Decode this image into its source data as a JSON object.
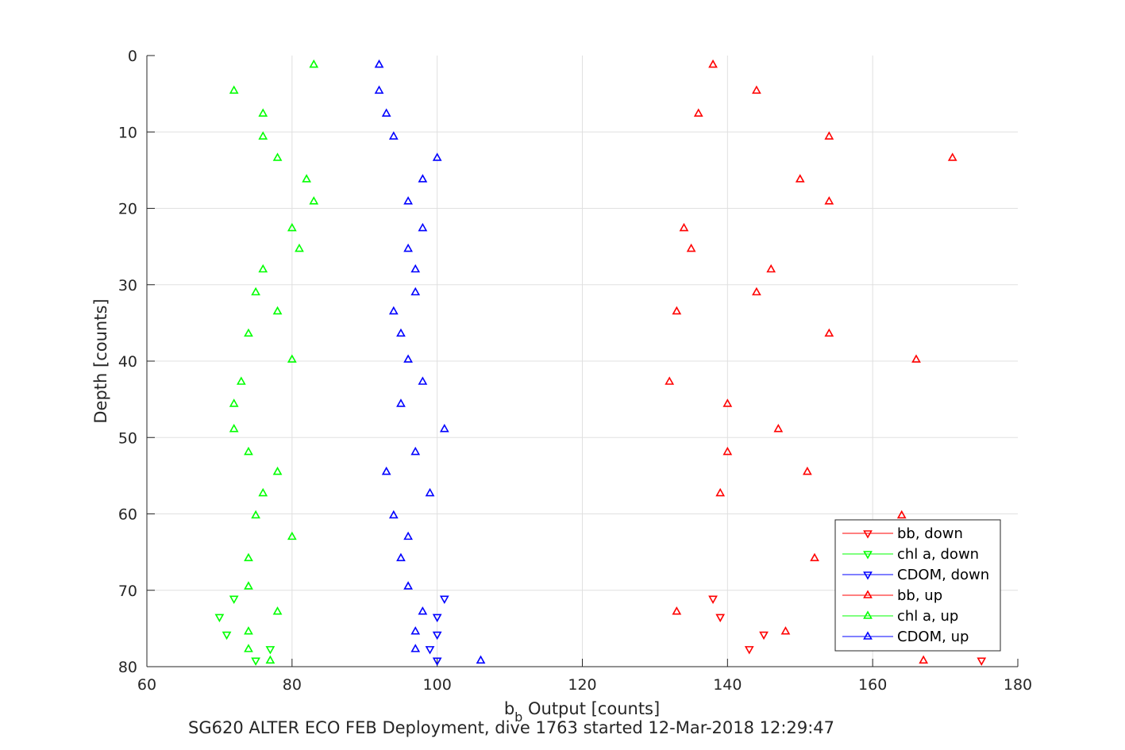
{
  "chart_data": {
    "type": "scatter",
    "xlabel": "b",
    "xlabel_sub": "b",
    "xlabel_suffix": " Output [counts]",
    "ylabel": "Depth [counts]",
    "caption": "SG620 ALTER ECO FEB Deployment, dive 1763 started 12-Mar-2018 12:29:47",
    "xlim": [
      60,
      180
    ],
    "ylim": [
      0,
      80
    ],
    "y_reversed": true,
    "xticks": [
      60,
      80,
      100,
      120,
      140,
      160,
      180
    ],
    "yticks": [
      0,
      10,
      20,
      30,
      40,
      50,
      60,
      70,
      80
    ],
    "grid": true,
    "legend_position": "bottom-right",
    "series": [
      {
        "name": "bb, down",
        "color": "#ff0000",
        "marker": "triangle-down",
        "points": [
          [
            138,
            71.1
          ],
          [
            139,
            73.5
          ],
          [
            145,
            75.8
          ],
          [
            143,
            77.7
          ],
          [
            175,
            79.2
          ]
        ]
      },
      {
        "name": "chl a, down",
        "color": "#00ff00",
        "marker": "triangle-down",
        "points": [
          [
            72,
            71.1
          ],
          [
            70,
            73.5
          ],
          [
            71,
            75.8
          ],
          [
            77,
            77.7
          ],
          [
            75,
            79.2
          ]
        ]
      },
      {
        "name": "CDOM, down",
        "color": "#0000ff",
        "marker": "triangle-down",
        "points": [
          [
            101,
            71.1
          ],
          [
            100,
            73.5
          ],
          [
            100,
            75.8
          ],
          [
            99,
            77.7
          ],
          [
            100,
            79.2
          ]
        ]
      },
      {
        "name": "bb, up",
        "color": "#ff0000",
        "marker": "triangle-up",
        "points": [
          [
            138,
            1.2
          ],
          [
            144,
            4.6
          ],
          [
            136,
            7.6
          ],
          [
            154,
            10.6
          ],
          [
            171,
            13.4
          ],
          [
            150,
            16.2
          ],
          [
            154,
            19.1
          ],
          [
            134,
            22.6
          ],
          [
            135,
            25.3
          ],
          [
            146,
            28.0
          ],
          [
            144,
            31.0
          ],
          [
            133,
            33.5
          ],
          [
            154,
            36.4
          ],
          [
            166,
            39.8
          ],
          [
            132,
            42.7
          ],
          [
            140,
            45.6
          ],
          [
            147,
            48.9
          ],
          [
            140,
            51.9
          ],
          [
            151,
            54.5
          ],
          [
            139,
            57.3
          ],
          [
            164,
            60.2
          ],
          [
            152,
            65.8
          ],
          [
            133,
            72.8
          ],
          [
            148,
            75.4
          ],
          [
            167,
            79.2
          ]
        ]
      },
      {
        "name": "chl a, up",
        "color": "#00ff00",
        "marker": "triangle-up",
        "points": [
          [
            83,
            1.2
          ],
          [
            72,
            4.6
          ],
          [
            76,
            7.6
          ],
          [
            76,
            10.6
          ],
          [
            78,
            13.4
          ],
          [
            82,
            16.2
          ],
          [
            83,
            19.1
          ],
          [
            80,
            22.6
          ],
          [
            81,
            25.3
          ],
          [
            76,
            28.0
          ],
          [
            75,
            31.0
          ],
          [
            78,
            33.5
          ],
          [
            74,
            36.4
          ],
          [
            80,
            39.8
          ],
          [
            73,
            42.7
          ],
          [
            72,
            45.6
          ],
          [
            72,
            48.9
          ],
          [
            74,
            51.9
          ],
          [
            78,
            54.5
          ],
          [
            76,
            57.3
          ],
          [
            75,
            60.2
          ],
          [
            80,
            63.0
          ],
          [
            74,
            65.8
          ],
          [
            74,
            69.5
          ],
          [
            78,
            72.8
          ],
          [
            74,
            75.4
          ],
          [
            74,
            77.7
          ],
          [
            77,
            79.2
          ]
        ]
      },
      {
        "name": "CDOM, up",
        "color": "#0000ff",
        "marker": "triangle-up",
        "points": [
          [
            92,
            1.2
          ],
          [
            92,
            4.6
          ],
          [
            93,
            7.6
          ],
          [
            94,
            10.6
          ],
          [
            100,
            13.4
          ],
          [
            98,
            16.2
          ],
          [
            96,
            19.1
          ],
          [
            98,
            22.6
          ],
          [
            96,
            25.3
          ],
          [
            97,
            28.0
          ],
          [
            97,
            31.0
          ],
          [
            94,
            33.5
          ],
          [
            95,
            36.4
          ],
          [
            96,
            39.8
          ],
          [
            98,
            42.7
          ],
          [
            95,
            45.6
          ],
          [
            101,
            48.9
          ],
          [
            97,
            51.9
          ],
          [
            93,
            54.5
          ],
          [
            99,
            57.3
          ],
          [
            94,
            60.2
          ],
          [
            96,
            63.0
          ],
          [
            95,
            65.8
          ],
          [
            96,
            69.5
          ],
          [
            98,
            72.8
          ],
          [
            97,
            75.4
          ],
          [
            97,
            77.7
          ],
          [
            106,
            79.2
          ]
        ]
      }
    ]
  }
}
